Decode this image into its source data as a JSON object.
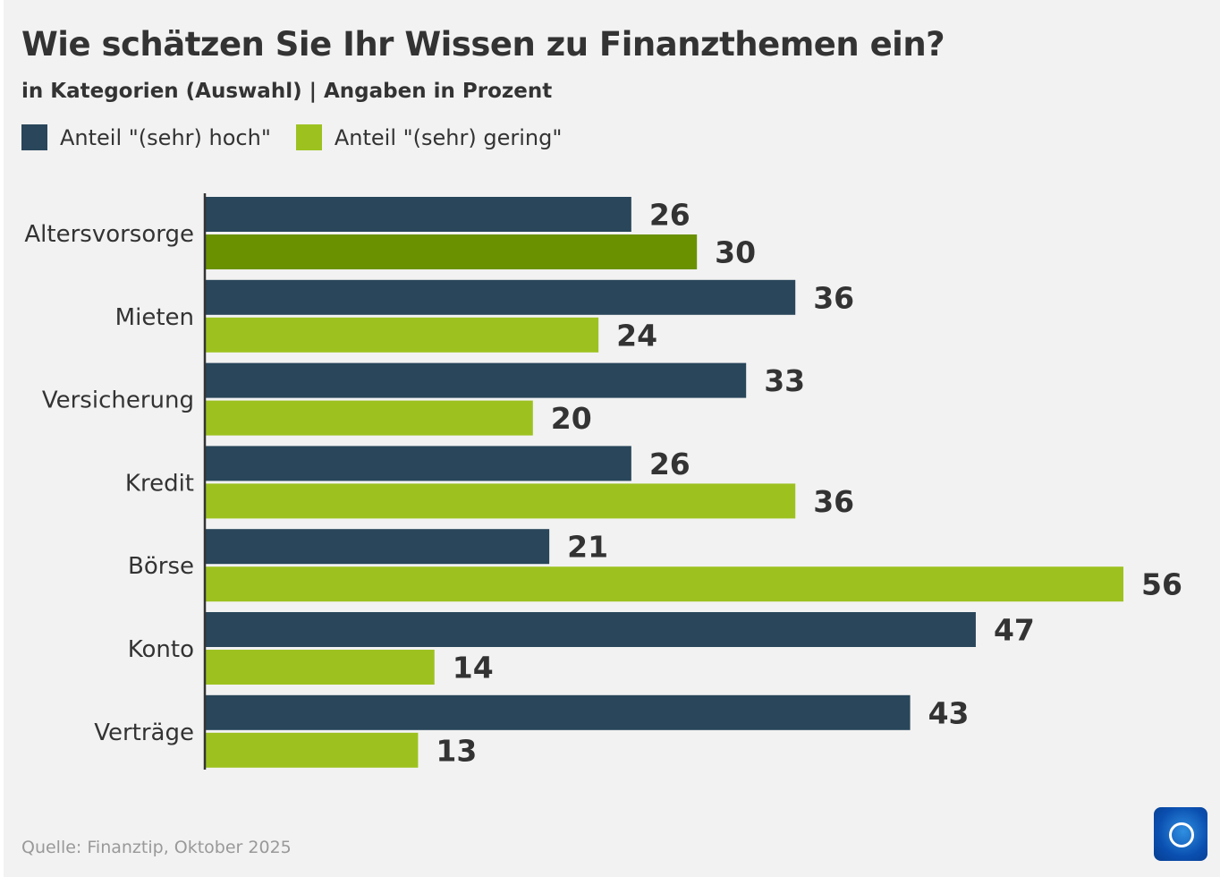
{
  "title": "Wie schätzen Sie Ihr Wissen zu Finanzthemen ein?",
  "subtitle": "in Kategorien (Auswahl) | Angaben in Prozent",
  "source": "Quelle: Finanztip, Oktober 2025",
  "logo": "tagesschau",
  "colors": {
    "hoch": "#29465a",
    "gering": "#9dc220",
    "gering_highlight": "#6a9100",
    "text": "#333333",
    "background": "#f2f2f2"
  },
  "chart_data": {
    "type": "bar",
    "orientation": "horizontal",
    "title": "Wie schätzen Sie Ihr Wissen zu Finanzthemen ein?",
    "subtitle": "in Kategorien (Auswahl) | Angaben in Prozent",
    "categories": [
      "Altersvorsorge",
      "Mieten",
      "Versicherung",
      "Kredit",
      "Börse",
      "Konto",
      "Verträge"
    ],
    "series": [
      {
        "name": "Anteil \"(sehr) hoch\"",
        "values": [
          26,
          36,
          33,
          26,
          21,
          47,
          43
        ]
      },
      {
        "name": "Anteil \"(sehr) gering\"",
        "values": [
          30,
          24,
          20,
          36,
          56,
          14,
          13
        ]
      }
    ],
    "highlighted": {
      "category": "Altersvorsorge",
      "series": 1
    },
    "xlim": [
      0,
      56
    ],
    "grid": false,
    "legend": "top-left",
    "data_labels": true
  }
}
